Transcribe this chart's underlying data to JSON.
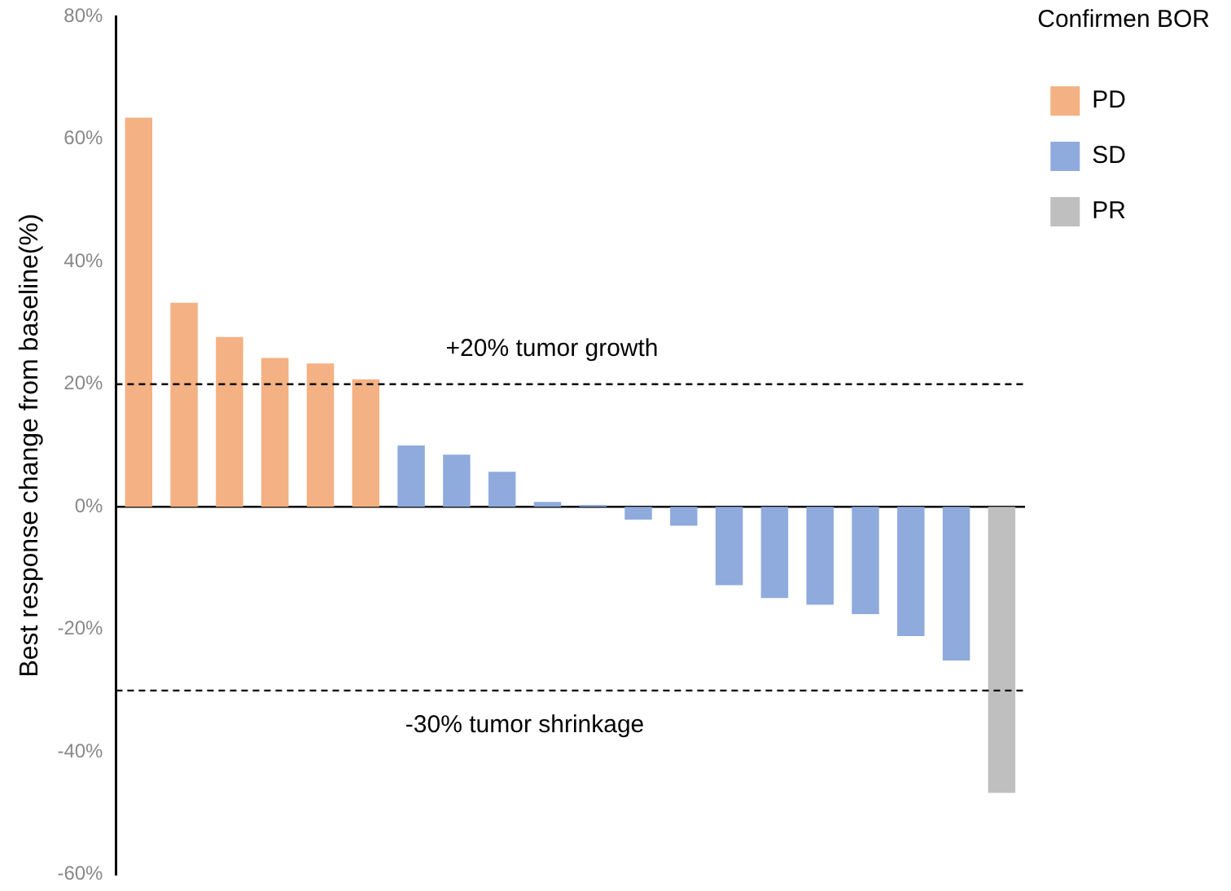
{
  "chart_data": {
    "type": "bar",
    "ylabel": "Best response change from baseline(%)",
    "legend_title": "Confirmen BOR",
    "legend": "top right",
    "categories": [
      null,
      null,
      null,
      null,
      null,
      null,
      null,
      null,
      null,
      null,
      null,
      null,
      null,
      null,
      null,
      null,
      null,
      null,
      null,
      null
    ],
    "series": [
      {
        "name": "PD",
        "color": "#f4b183",
        "values": [
          63.5,
          33.3,
          27.7,
          24.3,
          23.4,
          20.8,
          null,
          null,
          null,
          null,
          null,
          null,
          null,
          null,
          null,
          null,
          null,
          null,
          null,
          null
        ]
      },
      {
        "name": "SD",
        "color": "#8faadc",
        "values": [
          null,
          null,
          null,
          null,
          null,
          null,
          10.0,
          8.5,
          5.7,
          0.8,
          0.3,
          -2.1,
          -3.1,
          -12.8,
          -14.9,
          -16.0,
          -17.5,
          -21.1,
          -25.1,
          null
        ]
      },
      {
        "name": "PR",
        "color": "#bfbfbf",
        "values": [
          null,
          null,
          null,
          null,
          null,
          null,
          null,
          null,
          null,
          null,
          null,
          null,
          null,
          null,
          null,
          null,
          null,
          null,
          null,
          -46.7
        ]
      }
    ],
    "ylim": [
      -60,
      80
    ],
    "yticks": [
      {
        "value": -60,
        "label": "-60%"
      },
      {
        "value": -40,
        "label": "-40%"
      },
      {
        "value": -20,
        "label": "-20%"
      },
      {
        "value": 0,
        "label": "0%"
      },
      {
        "value": 20,
        "label": "20%"
      },
      {
        "value": 40,
        "label": "40%"
      },
      {
        "value": 60,
        "label": "60%"
      },
      {
        "value": 80,
        "label": "80%"
      }
    ],
    "ref_lines": [
      {
        "axis": "y",
        "value": 20,
        "label": "+20% tumor growth",
        "line_style": "dashed"
      },
      {
        "axis": "y",
        "value": -30,
        "label": "-30% tumor shrinkage",
        "line_style": "dashed"
      }
    ]
  }
}
